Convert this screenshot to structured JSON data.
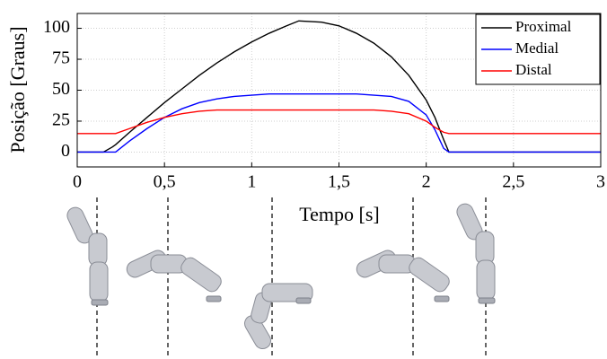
{
  "chart_data": {
    "type": "line",
    "x_label": "Tempo [s]",
    "y_label": "Posição [Graus]",
    "x": [
      0,
      0.15,
      0.2,
      0.22,
      0.3,
      0.4,
      0.5,
      0.6,
      0.7,
      0.8,
      0.9,
      1.0,
      1.1,
      1.2,
      1.27,
      1.4,
      1.5,
      1.6,
      1.7,
      1.8,
      1.9,
      2.0,
      2.05,
      2.1,
      2.13,
      2.2,
      3.0
    ],
    "series": [
      {
        "name": "Proximal",
        "color": "#000000",
        "values": [
          0,
          0,
          4,
          6,
          16,
          28,
          40,
          51,
          62,
          72,
          81,
          89,
          96,
          102,
          106,
          105,
          102,
          96,
          88,
          77,
          62,
          42,
          28,
          10,
          0,
          0,
          0
        ]
      },
      {
        "name": "Medial",
        "color": "#0000ff",
        "values": [
          0,
          0,
          0,
          0,
          9,
          19,
          28,
          35,
          40,
          43,
          45,
          46,
          47,
          47,
          47,
          47,
          47,
          47,
          46,
          45,
          41,
          30,
          18,
          3,
          0,
          0,
          0
        ]
      },
      {
        "name": "Distal",
        "color": "#ff0000",
        "values": [
          15,
          15,
          15,
          15,
          19,
          24,
          28,
          31,
          33,
          34,
          34,
          34,
          34,
          34,
          34,
          34,
          34,
          34,
          34,
          33,
          31,
          25,
          20,
          16,
          15,
          15,
          15
        ]
      }
    ],
    "xlim": [
      0,
      3
    ],
    "ylim": [
      -12,
      112
    ],
    "xticks": [
      0,
      {
        "value": 0.5,
        "label": "0,5"
      },
      1,
      {
        "value": 1.5,
        "label": "1,5"
      },
      2,
      {
        "value": 2.5,
        "label": "2,5"
      },
      3
    ],
    "yticks": [
      0,
      25,
      50,
      75,
      100
    ],
    "grid": true,
    "legend": "upper right"
  }
}
